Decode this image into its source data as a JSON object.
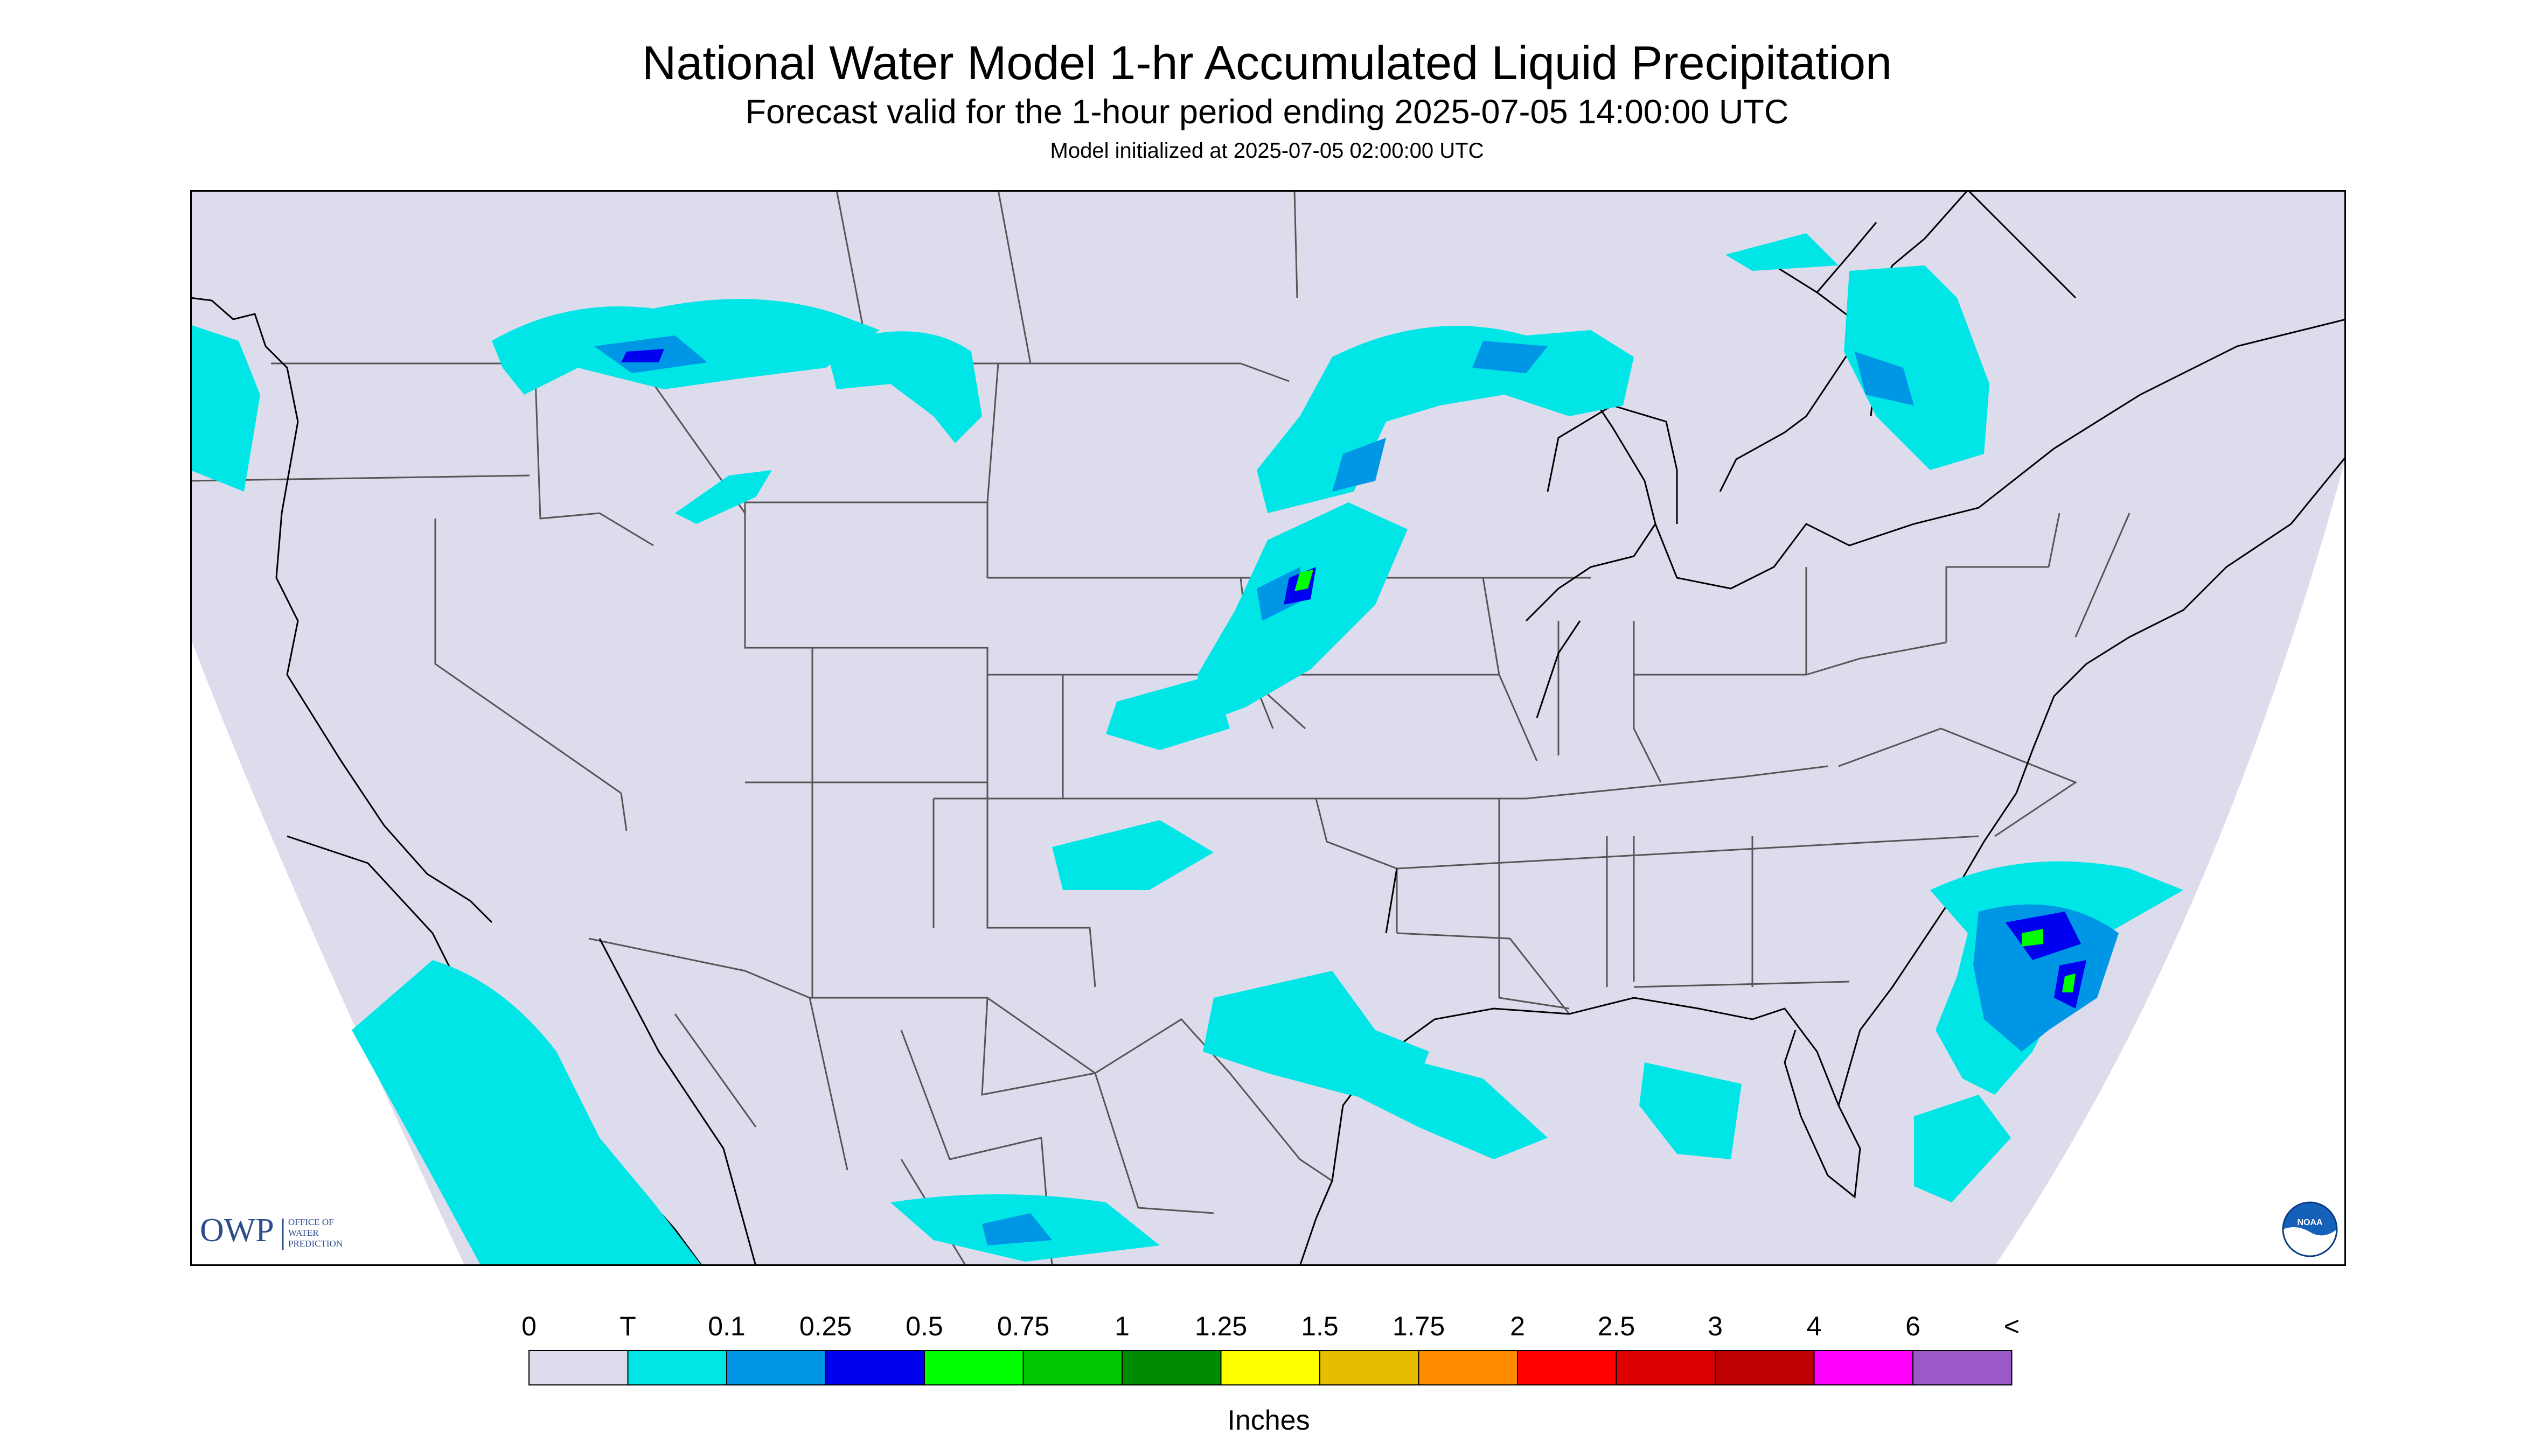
{
  "title": "National Water Model 1-hr Accumulated Liquid Precipitation",
  "subtitle": "Forecast valid for the 1-hour period ending 2025-07-05 14:00:00 UTC",
  "init_text": "Model initialized at 2025-07-05 02:00:00 UTC",
  "logo": {
    "owp_mark": "OWP",
    "owp_text": [
      "OFFICE OF",
      "WATER",
      "PREDICTION"
    ],
    "noaa_mark": "NOAA"
  },
  "legend": {
    "labels": [
      "0",
      "T",
      "0.1",
      "0.25",
      "0.5",
      "0.75",
      "1",
      "1.25",
      "1.5",
      "1.75",
      "2",
      "2.5",
      "3",
      "4",
      "6",
      "<"
    ],
    "colors": [
      "#dcdced",
      "#00e6e6",
      "#0096e6",
      "#0000f0",
      "#00ff00",
      "#00c800",
      "#008c00",
      "#ffff00",
      "#e6be00",
      "#ff8c00",
      "#ff0000",
      "#dc0000",
      "#be0000",
      "#ff00ff",
      "#9b59c8"
    ],
    "units": "Inches"
  },
  "map_colors": {
    "outside": "#ffffff",
    "domain": "#dcdced",
    "border": "#555555",
    "coast": "#000000"
  }
}
